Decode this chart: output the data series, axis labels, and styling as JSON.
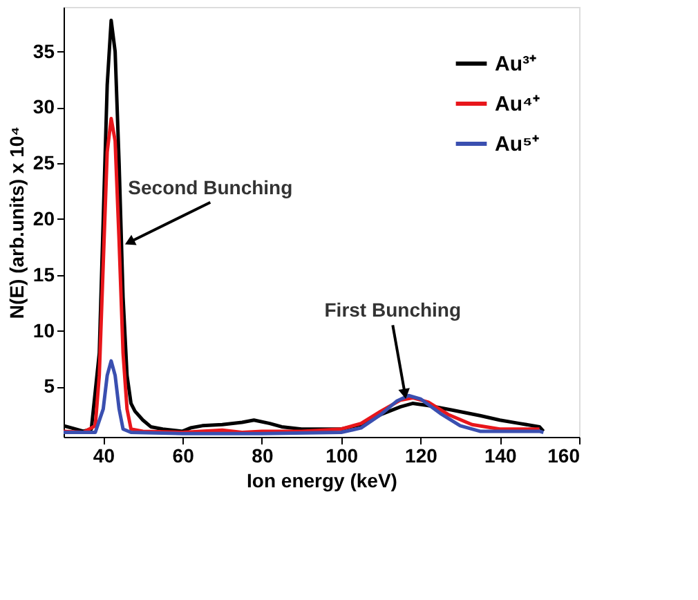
{
  "chart_data": {
    "type": "line",
    "xlabel": "Ion energy (keV)",
    "ylabel": "N(E) (arb.units) x 10⁴",
    "xlim": [
      30,
      160
    ],
    "xticks": [
      40,
      60,
      80,
      100,
      120,
      140,
      160
    ],
    "ylim": [
      0.5,
      39
    ],
    "yticks": [
      5,
      10,
      15,
      20,
      25,
      30,
      35
    ],
    "grid": false,
    "legend": "top right",
    "marker": "none",
    "line_style": "solid",
    "annotations": [
      {
        "text": "Second Bunching",
        "x": 47,
        "y": 18
      },
      {
        "text": "First Bunching",
        "x": 116,
        "y": 4.5
      }
    ],
    "series": [
      {
        "name": "Au³⁺",
        "color": "#000000",
        "x": [
          30,
          33,
          35,
          37,
          39,
          40,
          41,
          42,
          43,
          44,
          45,
          46,
          47,
          48,
          50,
          52,
          55,
          60,
          62,
          65,
          70,
          75,
          78,
          82,
          85,
          90,
          100,
          105,
          110,
          115,
          118,
          122,
          128,
          135,
          140,
          145,
          150,
          151
        ],
        "values": [
          1.5,
          1.2,
          1.0,
          1.2,
          8,
          20,
          32,
          37.8,
          35,
          25,
          13,
          6,
          3.5,
          2.8,
          2,
          1.4,
          1.2,
          1.0,
          1.3,
          1.5,
          1.6,
          1.8,
          2.0,
          1.7,
          1.4,
          1.2,
          1.2,
          1.6,
          2.5,
          3.2,
          3.5,
          3.3,
          2.9,
          2.4,
          2.0,
          1.7,
          1.4,
          1.0
        ]
      },
      {
        "name": "Au⁴⁺",
        "color": "#e8161b",
        "x": [
          30,
          35,
          38,
          39,
          40,
          41,
          42,
          43,
          44,
          45,
          46,
          47,
          50,
          60,
          70,
          75,
          80,
          90,
          100,
          105,
          110,
          115,
          118,
          122,
          127,
          133,
          140,
          150
        ],
        "values": [
          1.0,
          0.9,
          1.5,
          6,
          16,
          26,
          29,
          27,
          18,
          8,
          3,
          1.2,
          1.0,
          0.9,
          1.1,
          0.9,
          1.0,
          1.0,
          1.2,
          1.7,
          2.8,
          3.8,
          4.0,
          3.6,
          2.5,
          1.6,
          1.2,
          1.2
        ]
      },
      {
        "name": "Au⁵⁺",
        "color": "#3a4fb0",
        "x": [
          30,
          38,
          40,
          41,
          42,
          43,
          44,
          45,
          47,
          60,
          80,
          100,
          105,
          110,
          114,
          117,
          120,
          125,
          130,
          135,
          150,
          151
        ],
        "values": [
          0.9,
          0.9,
          3,
          6,
          7.3,
          6,
          3,
          1.2,
          0.9,
          0.8,
          0.8,
          0.9,
          1.3,
          2.5,
          3.7,
          4.2,
          3.9,
          2.6,
          1.5,
          1.0,
          1.0,
          0.9
        ]
      }
    ]
  }
}
